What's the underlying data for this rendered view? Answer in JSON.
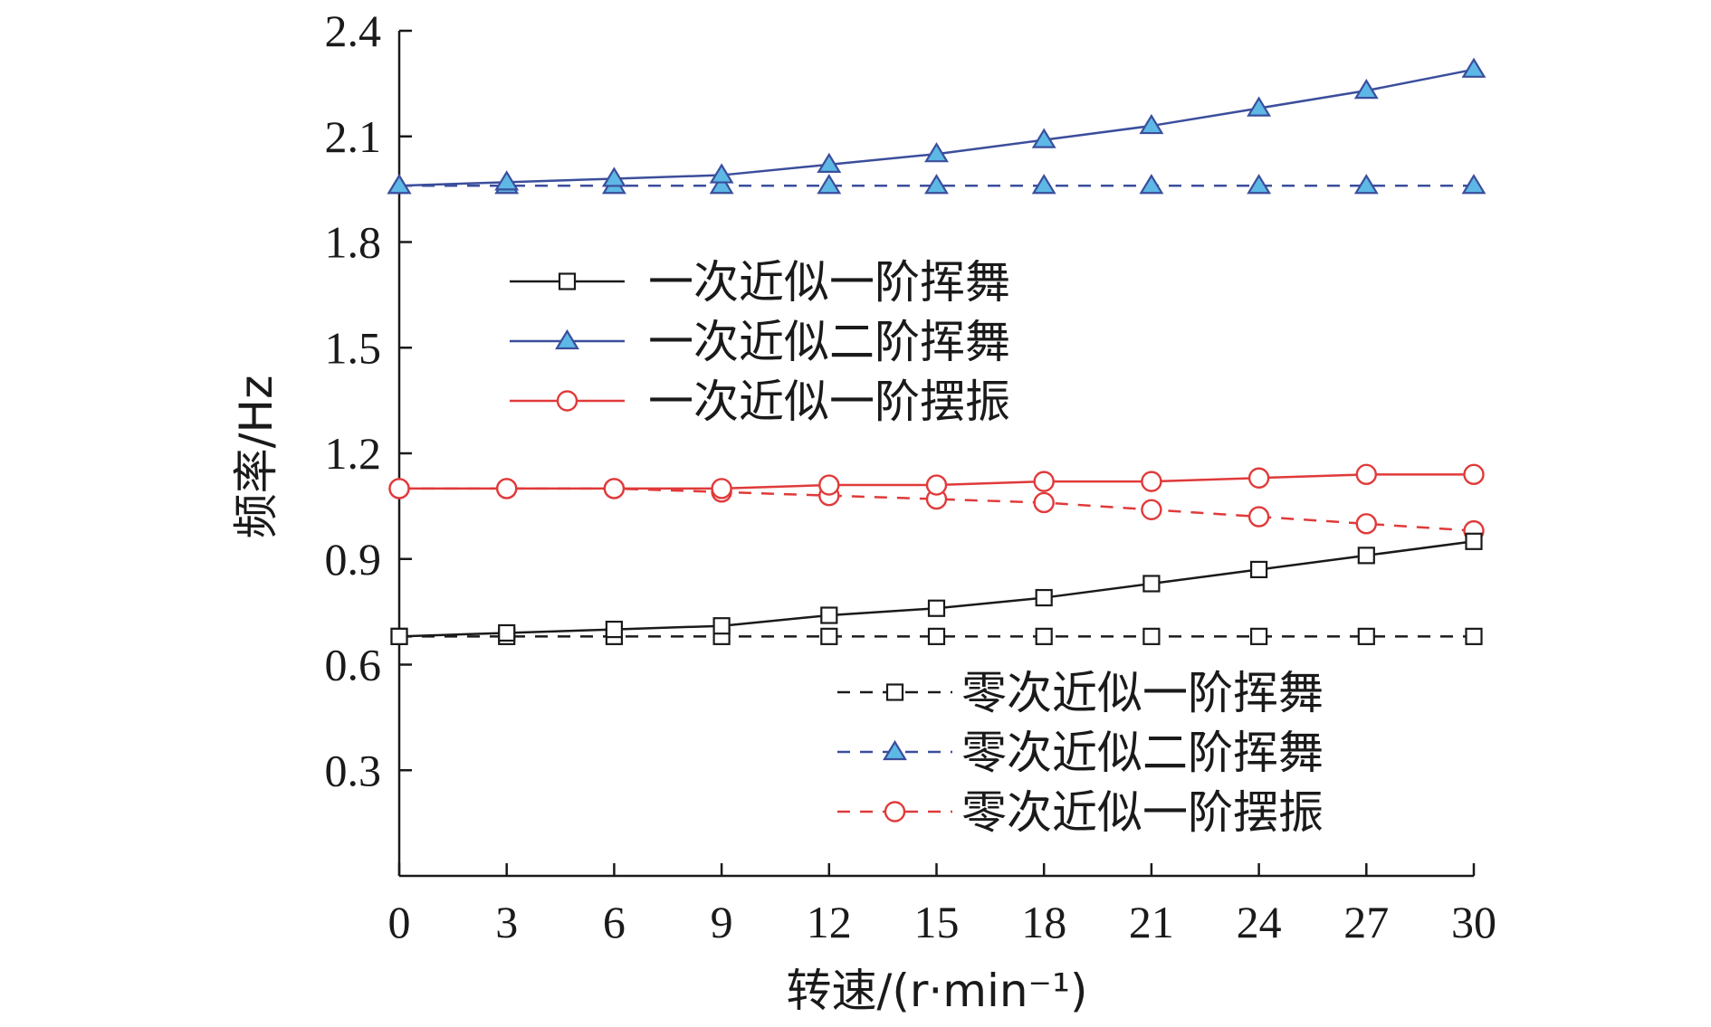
{
  "chart_data": {
    "type": "line",
    "title": "",
    "xlabel": "转速/(r·min⁻¹)",
    "ylabel": "频率/Hz",
    "xlim": [
      0,
      30
    ],
    "ylim": [
      0,
      2.4
    ],
    "x": [
      0,
      3,
      6,
      9,
      12,
      15,
      18,
      21,
      24,
      27,
      30
    ],
    "xticks": [
      "0",
      "3",
      "6",
      "9",
      "12",
      "15",
      "18",
      "21",
      "24",
      "27",
      "30"
    ],
    "yticks": [
      "0.3",
      "0.6",
      "0.9",
      "1.2",
      "1.5",
      "1.8",
      "2.1",
      "2.4"
    ],
    "grid": false,
    "series": [
      {
        "name": "一次近似一阶挥舞",
        "line": "solid",
        "marker": "square",
        "color": "#1a1a1a",
        "marker_fill": "#ffffff",
        "values": [
          0.68,
          0.69,
          0.7,
          0.71,
          0.74,
          0.76,
          0.79,
          0.83,
          0.87,
          0.91,
          0.95
        ]
      },
      {
        "name": "一次近似二阶挥舞",
        "line": "solid",
        "marker": "triangle",
        "color": "#3b4e9c",
        "marker_fill": "#5db8e6",
        "values": [
          1.96,
          1.97,
          1.98,
          1.99,
          2.02,
          2.05,
          2.09,
          2.13,
          2.18,
          2.23,
          2.29
        ]
      },
      {
        "name": "一次近似一阶摆振",
        "line": "solid",
        "marker": "circle",
        "color": "#e03a3a",
        "marker_fill": "#ffffff",
        "values": [
          1.1,
          1.1,
          1.1,
          1.1,
          1.11,
          1.11,
          1.12,
          1.12,
          1.13,
          1.14,
          1.14
        ]
      },
      {
        "name": "零次近似一阶挥舞",
        "line": "dashed",
        "marker": "square",
        "color": "#1a1a1a",
        "marker_fill": "#ffffff",
        "values": [
          0.68,
          0.68,
          0.68,
          0.68,
          0.68,
          0.68,
          0.68,
          0.68,
          0.68,
          0.68,
          0.68
        ]
      },
      {
        "name": "零次近似二阶挥舞",
        "line": "dashed",
        "marker": "triangle",
        "color": "#3b4e9c",
        "marker_fill": "#5db8e6",
        "values": [
          1.96,
          1.96,
          1.96,
          1.96,
          1.96,
          1.96,
          1.96,
          1.96,
          1.96,
          1.96,
          1.96
        ]
      },
      {
        "name": "零次近似一阶摆振",
        "line": "dashed",
        "marker": "circle",
        "color": "#e03a3a",
        "marker_fill": "#ffffff",
        "values": [
          1.1,
          1.1,
          1.1,
          1.09,
          1.08,
          1.07,
          1.06,
          1.04,
          1.02,
          1.0,
          0.98
        ]
      }
    ],
    "legend": {
      "upper": {
        "placement": "center-left",
        "series": [
          0,
          1,
          2
        ]
      },
      "lower": {
        "placement": "bottom-right",
        "series": [
          3,
          4,
          5
        ]
      }
    }
  }
}
